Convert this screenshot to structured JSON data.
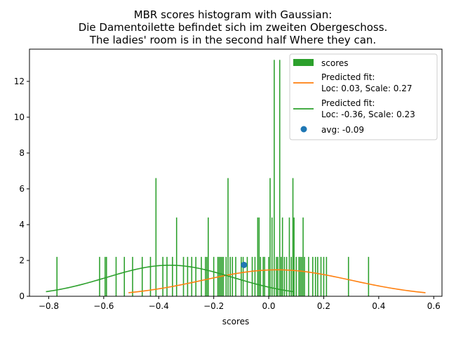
{
  "chart_data": {
    "type": "bar",
    "title_lines": [
      "MBR scores histogram with Gaussian:",
      "Die Damentoilette befindet sich im zweiten Obergeschoss.",
      "The ladies' room is in the second half Where they can."
    ],
    "xlabel": "scores",
    "ylabel": "",
    "xlim": [
      -0.87,
      0.63
    ],
    "ylim": [
      0,
      13.8
    ],
    "xticks": [
      -0.8,
      -0.6,
      -0.4,
      -0.2,
      0.0,
      0.2,
      0.4,
      0.6
    ],
    "xtick_labels": [
      "−0.8",
      "−0.6",
      "−0.4",
      "−0.2",
      "0.0",
      "0.2",
      "0.4",
      "0.6"
    ],
    "yticks": [
      0,
      2,
      4,
      6,
      8,
      10,
      12
    ],
    "ytick_labels": [
      "0",
      "2",
      "4",
      "6",
      "8",
      "10",
      "12"
    ],
    "grid": false,
    "legend_position": "top-right",
    "histogram": {
      "name": "scores",
      "color": "#2ca02c",
      "bar_width": 0.004,
      "bars": [
        {
          "x": -0.77,
          "h": 2.2
        },
        {
          "x": -0.615,
          "h": 2.2
        },
        {
          "x": -0.595,
          "h": 2.2
        },
        {
          "x": -0.59,
          "h": 2.2
        },
        {
          "x": -0.555,
          "h": 2.2
        },
        {
          "x": -0.525,
          "h": 2.2
        },
        {
          "x": -0.495,
          "h": 2.2
        },
        {
          "x": -0.46,
          "h": 2.2
        },
        {
          "x": -0.43,
          "h": 2.2
        },
        {
          "x": -0.41,
          "h": 6.6
        },
        {
          "x": -0.385,
          "h": 2.2
        },
        {
          "x": -0.37,
          "h": 2.2
        },
        {
          "x": -0.35,
          "h": 2.2
        },
        {
          "x": -0.335,
          "h": 4.4
        },
        {
          "x": -0.31,
          "h": 2.2
        },
        {
          "x": -0.295,
          "h": 2.2
        },
        {
          "x": -0.28,
          "h": 2.2
        },
        {
          "x": -0.265,
          "h": 2.2
        },
        {
          "x": -0.245,
          "h": 2.2
        },
        {
          "x": -0.23,
          "h": 2.2
        },
        {
          "x": -0.225,
          "h": 2.2
        },
        {
          "x": -0.22,
          "h": 4.4
        },
        {
          "x": -0.2,
          "h": 2.2
        },
        {
          "x": -0.185,
          "h": 2.2
        },
        {
          "x": -0.18,
          "h": 2.2
        },
        {
          "x": -0.175,
          "h": 2.2
        },
        {
          "x": -0.17,
          "h": 2.2
        },
        {
          "x": -0.165,
          "h": 2.2
        },
        {
          "x": -0.155,
          "h": 2.2
        },
        {
          "x": -0.148,
          "h": 6.6
        },
        {
          "x": -0.14,
          "h": 2.2
        },
        {
          "x": -0.132,
          "h": 2.2
        },
        {
          "x": -0.12,
          "h": 2.2
        },
        {
          "x": -0.1,
          "h": 2.2
        },
        {
          "x": -0.093,
          "h": 2.2
        },
        {
          "x": -0.078,
          "h": 2.2
        },
        {
          "x": -0.06,
          "h": 2.2
        },
        {
          "x": -0.05,
          "h": 2.2
        },
        {
          "x": -0.04,
          "h": 4.4
        },
        {
          "x": -0.035,
          "h": 4.4
        },
        {
          "x": -0.03,
          "h": 2.2
        },
        {
          "x": -0.02,
          "h": 2.2
        },
        {
          "x": -0.015,
          "h": 2.2
        },
        {
          "x": 0.0,
          "h": 2.2
        },
        {
          "x": 0.005,
          "h": 6.6
        },
        {
          "x": 0.012,
          "h": 4.4
        },
        {
          "x": 0.02,
          "h": 13.2
        },
        {
          "x": 0.028,
          "h": 2.2
        },
        {
          "x": 0.033,
          "h": 2.2
        },
        {
          "x": 0.04,
          "h": 13.2
        },
        {
          "x": 0.045,
          "h": 2.2
        },
        {
          "x": 0.05,
          "h": 4.4
        },
        {
          "x": 0.057,
          "h": 2.2
        },
        {
          "x": 0.065,
          "h": 2.2
        },
        {
          "x": 0.075,
          "h": 4.4
        },
        {
          "x": 0.082,
          "h": 2.2
        },
        {
          "x": 0.088,
          "h": 6.6
        },
        {
          "x": 0.092,
          "h": 4.4
        },
        {
          "x": 0.1,
          "h": 2.2
        },
        {
          "x": 0.11,
          "h": 2.2
        },
        {
          "x": 0.115,
          "h": 2.2
        },
        {
          "x": 0.12,
          "h": 2.2
        },
        {
          "x": 0.125,
          "h": 4.4
        },
        {
          "x": 0.13,
          "h": 2.2
        },
        {
          "x": 0.145,
          "h": 2.2
        },
        {
          "x": 0.16,
          "h": 2.2
        },
        {
          "x": 0.17,
          "h": 2.2
        },
        {
          "x": 0.178,
          "h": 2.2
        },
        {
          "x": 0.19,
          "h": 2.2
        },
        {
          "x": 0.2,
          "h": 2.2
        },
        {
          "x": 0.21,
          "h": 2.2
        },
        {
          "x": 0.29,
          "h": 2.2
        },
        {
          "x": 0.363,
          "h": 2.2
        }
      ]
    },
    "series": [
      {
        "name": "Predicted fit:\nLoc: 0.03, Scale: 0.27",
        "type": "gaussian",
        "loc": 0.03,
        "scale": 0.27,
        "x_range": [
          -0.51,
          0.57
        ],
        "color": "#ff7f0e"
      },
      {
        "name": "Predicted fit:\nLoc: -0.36, Scale: 0.23",
        "type": "gaussian",
        "loc": -0.36,
        "scale": 0.23,
        "x_range": [
          -0.81,
          0.09
        ],
        "color": "#2ca02c"
      }
    ],
    "avg_point": {
      "name": "avg: -0.09",
      "x": -0.09,
      "y": 1.75,
      "color": "#1f77b4"
    },
    "legend": [
      "scores",
      "Predicted fit:\nLoc: 0.03, Scale: 0.27",
      "Predicted fit:\nLoc: -0.36, Scale: 0.23",
      "avg: -0.09"
    ]
  }
}
